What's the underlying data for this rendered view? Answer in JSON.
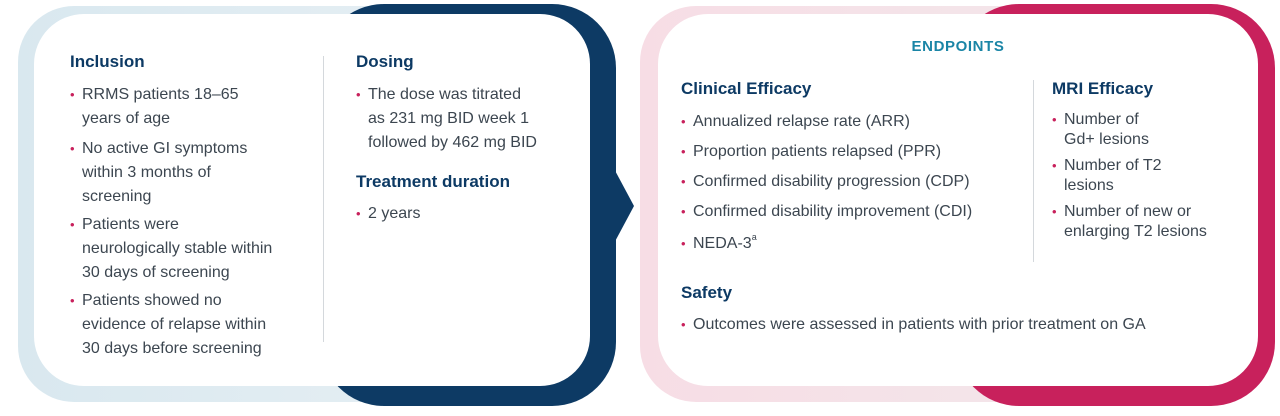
{
  "inclusion": {
    "title": "Inclusion",
    "items": [
      [
        "RRMS patients 18–65",
        "years of age"
      ],
      [
        "No active GI symptoms",
        "within 3 months of",
        "screening"
      ],
      [
        "Patients were",
        "neurologically stable within",
        "30 days of screening"
      ],
      [
        "Patients showed no",
        "evidence of relapse within",
        "30 days before screening"
      ]
    ]
  },
  "dosing": {
    "title": "Dosing",
    "items": [
      [
        "The dose was titrated",
        "as 231 mg BID week 1",
        "followed by 462 mg BID"
      ]
    ]
  },
  "treatment_duration": {
    "title": "Treatment duration",
    "items": [
      "2 years"
    ]
  },
  "endpoints": {
    "title": "ENDPOINTS",
    "clinical_efficacy": {
      "title": "Clinical Efficacy",
      "items": [
        "Annualized relapse rate (ARR)",
        "Proportion patients relapsed (PPR)",
        "Confirmed disability progression (CDP)",
        "Confirmed disability improvement (CDI)"
      ],
      "neda_label": "NEDA-3",
      "neda_superscript": "a"
    },
    "mri_efficacy": {
      "title": "MRI Efficacy",
      "items": [
        [
          "Number of",
          "Gd+ lesions"
        ],
        [
          "Number of T2",
          "lesions"
        ],
        [
          "Number of new or",
          "enlarging T2 lesions"
        ]
      ]
    },
    "safety": {
      "title": "Safety",
      "items": [
        "Outcomes were assessed in patients with prior treatment on GA"
      ]
    }
  },
  "colors": {
    "navy": "#0d3a64",
    "magenta": "#c8215c",
    "teal": "#1a85a6",
    "text": "#3c4650"
  }
}
